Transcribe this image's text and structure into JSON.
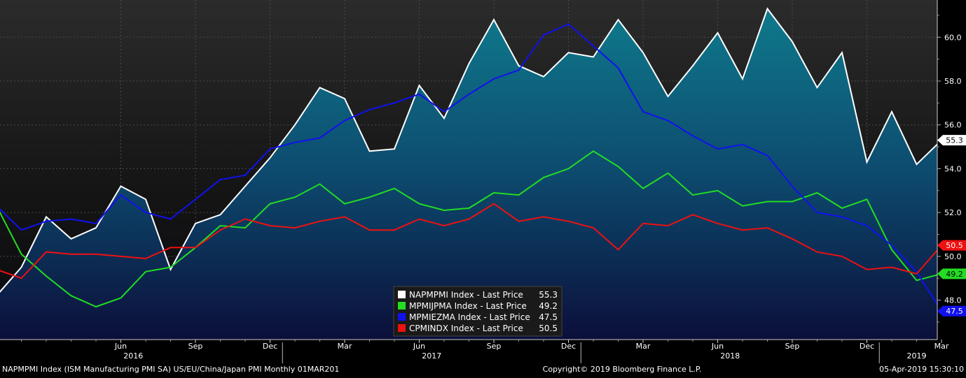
{
  "chart_data": {
    "type": "line",
    "x": [
      "Jan 2016",
      "Feb 2016",
      "Mar 2016",
      "Apr 2016",
      "May 2016",
      "Jun 2016",
      "Jul 2016",
      "Aug 2016",
      "Sep 2016",
      "Oct 2016",
      "Nov 2016",
      "Dec 2016",
      "Jan 2017",
      "Feb 2017",
      "Mar 2017",
      "Apr 2017",
      "May 2017",
      "Jun 2017",
      "Jul 2017",
      "Aug 2017",
      "Sep 2017",
      "Oct 2017",
      "Nov 2017",
      "Dec 2017",
      "Jan 2018",
      "Feb 2018",
      "Mar 2018",
      "Apr 2018",
      "May 2018",
      "Jun 2018",
      "Jul 2018",
      "Aug 2018",
      "Sep 2018",
      "Oct 2018",
      "Nov 2018",
      "Dec 2018",
      "Jan 2019",
      "Feb 2019",
      "Mar 2019"
    ],
    "series": [
      {
        "name": "NAPMPMI Index - Last Price",
        "last": "55.3",
        "color": "#ffffff",
        "label_bg": "#ffffff",
        "label_fg": "#000000",
        "fill_area": true,
        "values": [
          48.2,
          49.5,
          51.8,
          50.8,
          51.3,
          53.2,
          52.6,
          49.4,
          51.5,
          51.9,
          53.2,
          54.5,
          56.0,
          57.7,
          57.2,
          54.8,
          54.9,
          57.8,
          56.3,
          58.8,
          60.8,
          58.7,
          58.2,
          59.3,
          59.1,
          60.8,
          59.3,
          57.3,
          58.7,
          60.2,
          58.1,
          61.3,
          59.8,
          57.7,
          59.3,
          54.3,
          56.6,
          54.2,
          55.3
        ]
      },
      {
        "name": "MPMIJPMA Index - Last Price",
        "last": "49.2",
        "color": "#22dd22",
        "label_bg": "#22dd22",
        "label_fg": "#000000",
        "fill_area": false,
        "values": [
          52.3,
          50.1,
          49.1,
          48.2,
          47.7,
          48.1,
          49.3,
          49.5,
          50.4,
          51.4,
          51.3,
          52.4,
          52.7,
          53.3,
          52.4,
          52.7,
          53.1,
          52.4,
          52.1,
          52.2,
          52.9,
          52.8,
          53.6,
          54.0,
          54.8,
          54.1,
          53.1,
          53.8,
          52.8,
          53.0,
          52.3,
          52.5,
          52.5,
          52.9,
          52.2,
          52.6,
          50.3,
          48.9,
          49.2
        ]
      },
      {
        "name": "MPMIEZMA Index - Last Price",
        "last": "47.5",
        "color": "#1111ee",
        "label_bg": "#1111ee",
        "label_fg": "#ffffff",
        "fill_area": false,
        "values": [
          52.3,
          51.2,
          51.6,
          51.7,
          51.5,
          52.8,
          52.0,
          51.7,
          52.6,
          53.5,
          53.7,
          54.9,
          55.2,
          55.4,
          56.2,
          56.7,
          57.0,
          57.4,
          56.6,
          57.4,
          58.1,
          58.5,
          60.1,
          60.6,
          59.6,
          58.6,
          56.6,
          56.2,
          55.5,
          54.9,
          55.1,
          54.6,
          53.2,
          52.0,
          51.8,
          51.4,
          50.5,
          49.3,
          47.5
        ]
      },
      {
        "name": "CPMINDX Index - Last Price",
        "last": "50.5",
        "color": "#ee1111",
        "label_bg": "#ee1111",
        "label_fg": "#ffffff",
        "fill_area": false,
        "values": [
          49.4,
          49.0,
          50.2,
          50.1,
          50.1,
          50.0,
          49.9,
          50.4,
          50.4,
          51.2,
          51.7,
          51.4,
          51.3,
          51.6,
          51.8,
          51.2,
          51.2,
          51.7,
          51.4,
          51.7,
          52.4,
          51.6,
          51.8,
          51.6,
          51.3,
          50.3,
          51.5,
          51.4,
          51.9,
          51.5,
          51.2,
          51.3,
          50.8,
          50.2,
          50.0,
          49.4,
          49.5,
          49.2,
          50.5
        ]
      }
    ],
    "ylim": [
      46.2,
      61.7
    ],
    "y_ticks": [
      "48.0",
      "50.0",
      "52.0",
      "54.0",
      "56.0",
      "58.0",
      "60.0"
    ],
    "x_month_ticks": [
      {
        "label": "Jun",
        "index": 5
      },
      {
        "label": "Sep",
        "index": 8
      },
      {
        "label": "Dec",
        "index": 11
      },
      {
        "label": "Mar",
        "index": 14
      },
      {
        "label": "Jun",
        "index": 17
      },
      {
        "label": "Sep",
        "index": 20
      },
      {
        "label": "Dec",
        "index": 23
      },
      {
        "label": "Mar",
        "index": 26
      },
      {
        "label": "Jun",
        "index": 29
      },
      {
        "label": "Sep",
        "index": 32
      },
      {
        "label": "Dec",
        "index": 35
      },
      {
        "label": "Mar",
        "index": 38
      }
    ],
    "x_year_labels": [
      {
        "label": "2016",
        "index": 5.5
      },
      {
        "label": "2017",
        "index": 17.5
      },
      {
        "label": "2018",
        "index": 29.5
      },
      {
        "label": "2019",
        "index": 37
      }
    ],
    "year_dividers": [
      12,
      24,
      36
    ],
    "legend_position": "bottom-center",
    "grid": true,
    "colors": {
      "background_top": "#2b2b2b",
      "background_bottom": "#0a0a10",
      "area_top": "#0f7a8c",
      "area_bottom": "#0b0f3a"
    }
  },
  "footer": {
    "left": "NAPMPMI Index (ISM Manufacturing PMI SA) US/EU/China/Japan PMI  Monthly 01MAR201",
    "center": "Copyright© 2019 Bloomberg Finance L.P.",
    "right": "05-Apr-2019 15:30:10"
  }
}
